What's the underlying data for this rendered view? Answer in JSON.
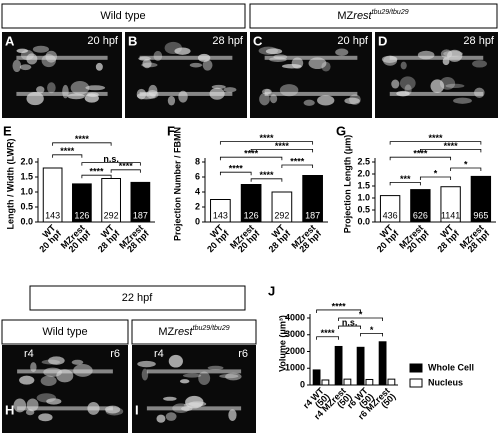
{
  "header": {
    "wild_type": "Wild type",
    "mutant": {
      "name": "MZ",
      "gene": "rest",
      "allele": "tbu29/tbu29"
    }
  },
  "images": [
    {
      "panel": "A",
      "label": "20 hpf"
    },
    {
      "panel": "B",
      "label": "28 hpf"
    },
    {
      "panel": "C",
      "label": "20 hpf"
    },
    {
      "panel": "D",
      "label": "28 hpf"
    }
  ],
  "bottom": {
    "stage": "22 hpf",
    "wild_type": "Wild type",
    "mutant": {
      "name": "MZ",
      "gene": "rest",
      "allele": "tbu29/tbu29"
    },
    "images": [
      {
        "panel": "H",
        "left": "r4",
        "right": "r6"
      },
      {
        "panel": "I",
        "left": "r4",
        "right": "r6"
      }
    ]
  },
  "chart_data": [
    {
      "type": "bar",
      "panel": "E",
      "ylabel": "Length / Width (LWR)",
      "categories": [
        [
          "WT",
          "20 hpf"
        ],
        [
          "MZrest",
          "20 hpf"
        ],
        [
          "WT",
          "28 hpf"
        ],
        [
          "MZrest",
          "28 hpf"
        ]
      ],
      "values": [
        1.8,
        1.27,
        1.45,
        1.32
      ],
      "colors": [
        "#ffffff",
        "#000000",
        "#ffffff",
        "#000000"
      ],
      "sample_sizes": [
        143,
        126,
        292,
        187
      ],
      "ylim": [
        0,
        2
      ],
      "yticks": [
        {
          "value": 0,
          "label": "0.0"
        },
        {
          "value": 0.5,
          "label": "0.5"
        },
        {
          "value": 1,
          "label": "1.0"
        },
        {
          "value": 1.5,
          "label": "1.5"
        },
        {
          "value": 2,
          "label": "2.0"
        }
      ],
      "significance": [
        "****",
        "****",
        "n.s.",
        "****",
        "****"
      ]
    },
    {
      "type": "bar",
      "panel": "F",
      "ylabel": "Projection Number / FBMN",
      "categories": [
        [
          "WT",
          "20 hpf"
        ],
        [
          "MZrest",
          "20 hpf"
        ],
        [
          "WT",
          "28 hpf"
        ],
        [
          "MZrest",
          "28 hpf"
        ]
      ],
      "values": [
        3.0,
        5.0,
        4.0,
        6.2
      ],
      "colors": [
        "#ffffff",
        "#000000",
        "#ffffff",
        "#000000"
      ],
      "sample_sizes": [
        143,
        126,
        292,
        187
      ],
      "ylim": [
        0,
        8
      ],
      "yticks": [
        0,
        2,
        4,
        6,
        8
      ],
      "significance": [
        "****",
        "****",
        "****",
        "****",
        "****",
        "****"
      ]
    },
    {
      "type": "bar",
      "panel": "G",
      "ylabel": "Projection Length (μm)",
      "categories": [
        [
          "WT",
          "20 hpf"
        ],
        [
          "MZrest",
          "20 hpf"
        ],
        [
          "WT",
          "28 hpf"
        ],
        [
          "MZrest",
          "28 hpf"
        ]
      ],
      "values": [
        1.1,
        1.35,
        1.47,
        1.9
      ],
      "colors": [
        "#ffffff",
        "#000000",
        "#ffffff",
        "#000000"
      ],
      "sample_sizes": [
        436,
        626,
        1141,
        965
      ],
      "ylim": [
        0,
        2.5
      ],
      "yticks": [
        {
          "value": 0,
          "label": "0.0"
        },
        {
          "value": 0.5,
          "label": "0.5"
        },
        {
          "value": 1,
          "label": "1.0"
        },
        {
          "value": 1.5,
          "label": "1.5"
        },
        {
          "value": 2,
          "label": "2.0"
        },
        {
          "value": 2.5,
          "label": "2.5"
        }
      ],
      "significance": [
        "****",
        "****",
        "****",
        "***",
        "*",
        "*"
      ]
    },
    {
      "type": "grouped_bar",
      "panel": "J",
      "ylabel": "Volume (μm³)",
      "categories": [
        [
          "r4 WT",
          "(50)"
        ],
        [
          "r4 MZrest",
          "(50)"
        ],
        [
          "r6 WT",
          "(50)"
        ],
        [
          "r6 MZrest",
          "(50)"
        ]
      ],
      "series": [
        {
          "name": "Whole Cell",
          "color": "#000000",
          "values": [
            900,
            2300,
            2250,
            2580
          ]
        },
        {
          "name": "Nucleus",
          "color": "#ffffff",
          "values": [
            300,
            350,
            330,
            350
          ]
        }
      ],
      "ylim": [
        0,
        4000
      ],
      "yticks": [
        0,
        1000,
        2000,
        3000,
        4000
      ],
      "significance": [
        "****",
        "*",
        "n.s.",
        "****",
        "*"
      ]
    }
  ]
}
